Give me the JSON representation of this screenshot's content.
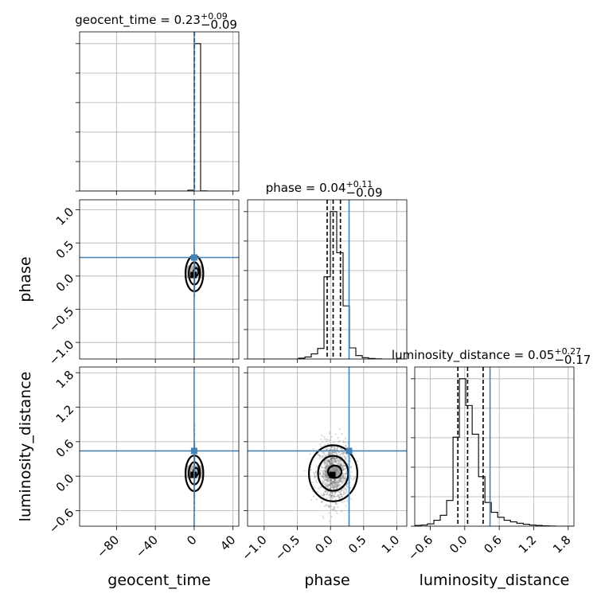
{
  "chart_data": {
    "type": "corner",
    "parameters": [
      "geocent_time",
      "phase",
      "luminosity_distance"
    ],
    "titles": [
      {
        "parameter": "geocent_time",
        "prefix": "geocent_time = ",
        "median": "0.23",
        "plus": "+0.09",
        "minus": "−0.09"
      },
      {
        "parameter": "phase",
        "prefix": "phase = ",
        "median": "0.04",
        "plus": "+0.11",
        "minus": "−0.09"
      },
      {
        "parameter": "luminosity_distance",
        "prefix": "luminosity_distance = ",
        "median": "0.05",
        "plus": "+0.27",
        "minus": "−0.17"
      }
    ],
    "axes": {
      "geocent_time": {
        "range": [
          -118,
          46
        ],
        "ticks": [
          -80,
          -40,
          0,
          40
        ],
        "tick_labels": [
          "−80",
          "−40",
          "0",
          "40"
        ]
      },
      "phase": {
        "range": [
          -1.25,
          1.15
        ],
        "ticks": [
          -1.0,
          -0.5,
          0.0,
          0.5,
          1.0
        ],
        "tick_labels": [
          "−1.0",
          "−0.5",
          "0.0",
          "0.5",
          "1.0"
        ]
      },
      "luminosity_distance": {
        "range": [
          -0.87,
          1.9
        ],
        "ticks": [
          -0.6,
          0.0,
          0.6,
          1.2,
          1.8
        ],
        "tick_labels": [
          "−0.6",
          "0.0",
          "0.6",
          "1.2",
          "1.8"
        ]
      }
    },
    "truths": {
      "geocent_time": 0.0,
      "phase": 0.28,
      "luminosity_distance": 0.44
    },
    "quantiles": {
      "geocent_time": [
        0.14,
        0.23,
        0.32
      ],
      "phase": [
        -0.05,
        0.04,
        0.15
      ],
      "luminosity_distance": [
        -0.12,
        0.05,
        0.32
      ]
    },
    "histograms": {
      "geocent_time": {
        "edges": [
          -118,
          -111.44,
          -104.88,
          -98.32,
          -91.76,
          -85.2,
          -78.64,
          -72.08,
          -65.52,
          -58.96,
          -52.4,
          -45.84,
          -39.28,
          -32.72,
          -26.16,
          -19.6,
          -13.04,
          -6.48,
          0.08,
          6.64,
          13.2,
          19.76,
          26.32,
          32.88,
          39.44,
          46
        ],
        "counts": [
          0,
          0,
          0,
          0,
          0,
          0,
          0,
          0,
          0,
          0,
          0,
          0,
          0,
          0,
          0,
          0,
          0,
          6,
          980,
          1,
          0,
          0,
          0,
          0,
          0
        ]
      },
      "phase": {
        "edges": [
          -1.25,
          -1.154,
          -1.058,
          -0.962,
          -0.866,
          -0.77,
          -0.674,
          -0.578,
          -0.482,
          -0.386,
          -0.29,
          -0.194,
          -0.098,
          -0.002,
          0.094,
          0.19,
          0.286,
          0.382,
          0.478,
          0.574,
          0.67,
          0.766,
          0.862,
          0.958,
          1.054,
          1.15
        ],
        "counts": [
          0,
          0,
          0,
          0,
          0,
          0,
          0,
          0,
          5,
          12,
          30,
          62,
          480,
          860,
          620,
          310,
          65,
          20,
          8,
          3,
          1,
          0,
          0,
          0,
          0
        ]
      },
      "luminosity_distance": {
        "edges": [
          -0.87,
          -0.759,
          -0.648,
          -0.537,
          -0.426,
          -0.315,
          -0.204,
          -0.093,
          0.018,
          0.129,
          0.24,
          0.351,
          0.462,
          0.573,
          0.684,
          0.795,
          0.906,
          1.017,
          1.128,
          1.239,
          1.35,
          1.461,
          1.572,
          1.683,
          1.794,
          1.9
        ],
        "counts": [
          4,
          6,
          12,
          30,
          55,
          130,
          450,
          745,
          610,
          465,
          250,
          120,
          70,
          45,
          30,
          22,
          15,
          10,
          6,
          4,
          2,
          1,
          0,
          0,
          0
        ]
      }
    },
    "grid": true
  }
}
